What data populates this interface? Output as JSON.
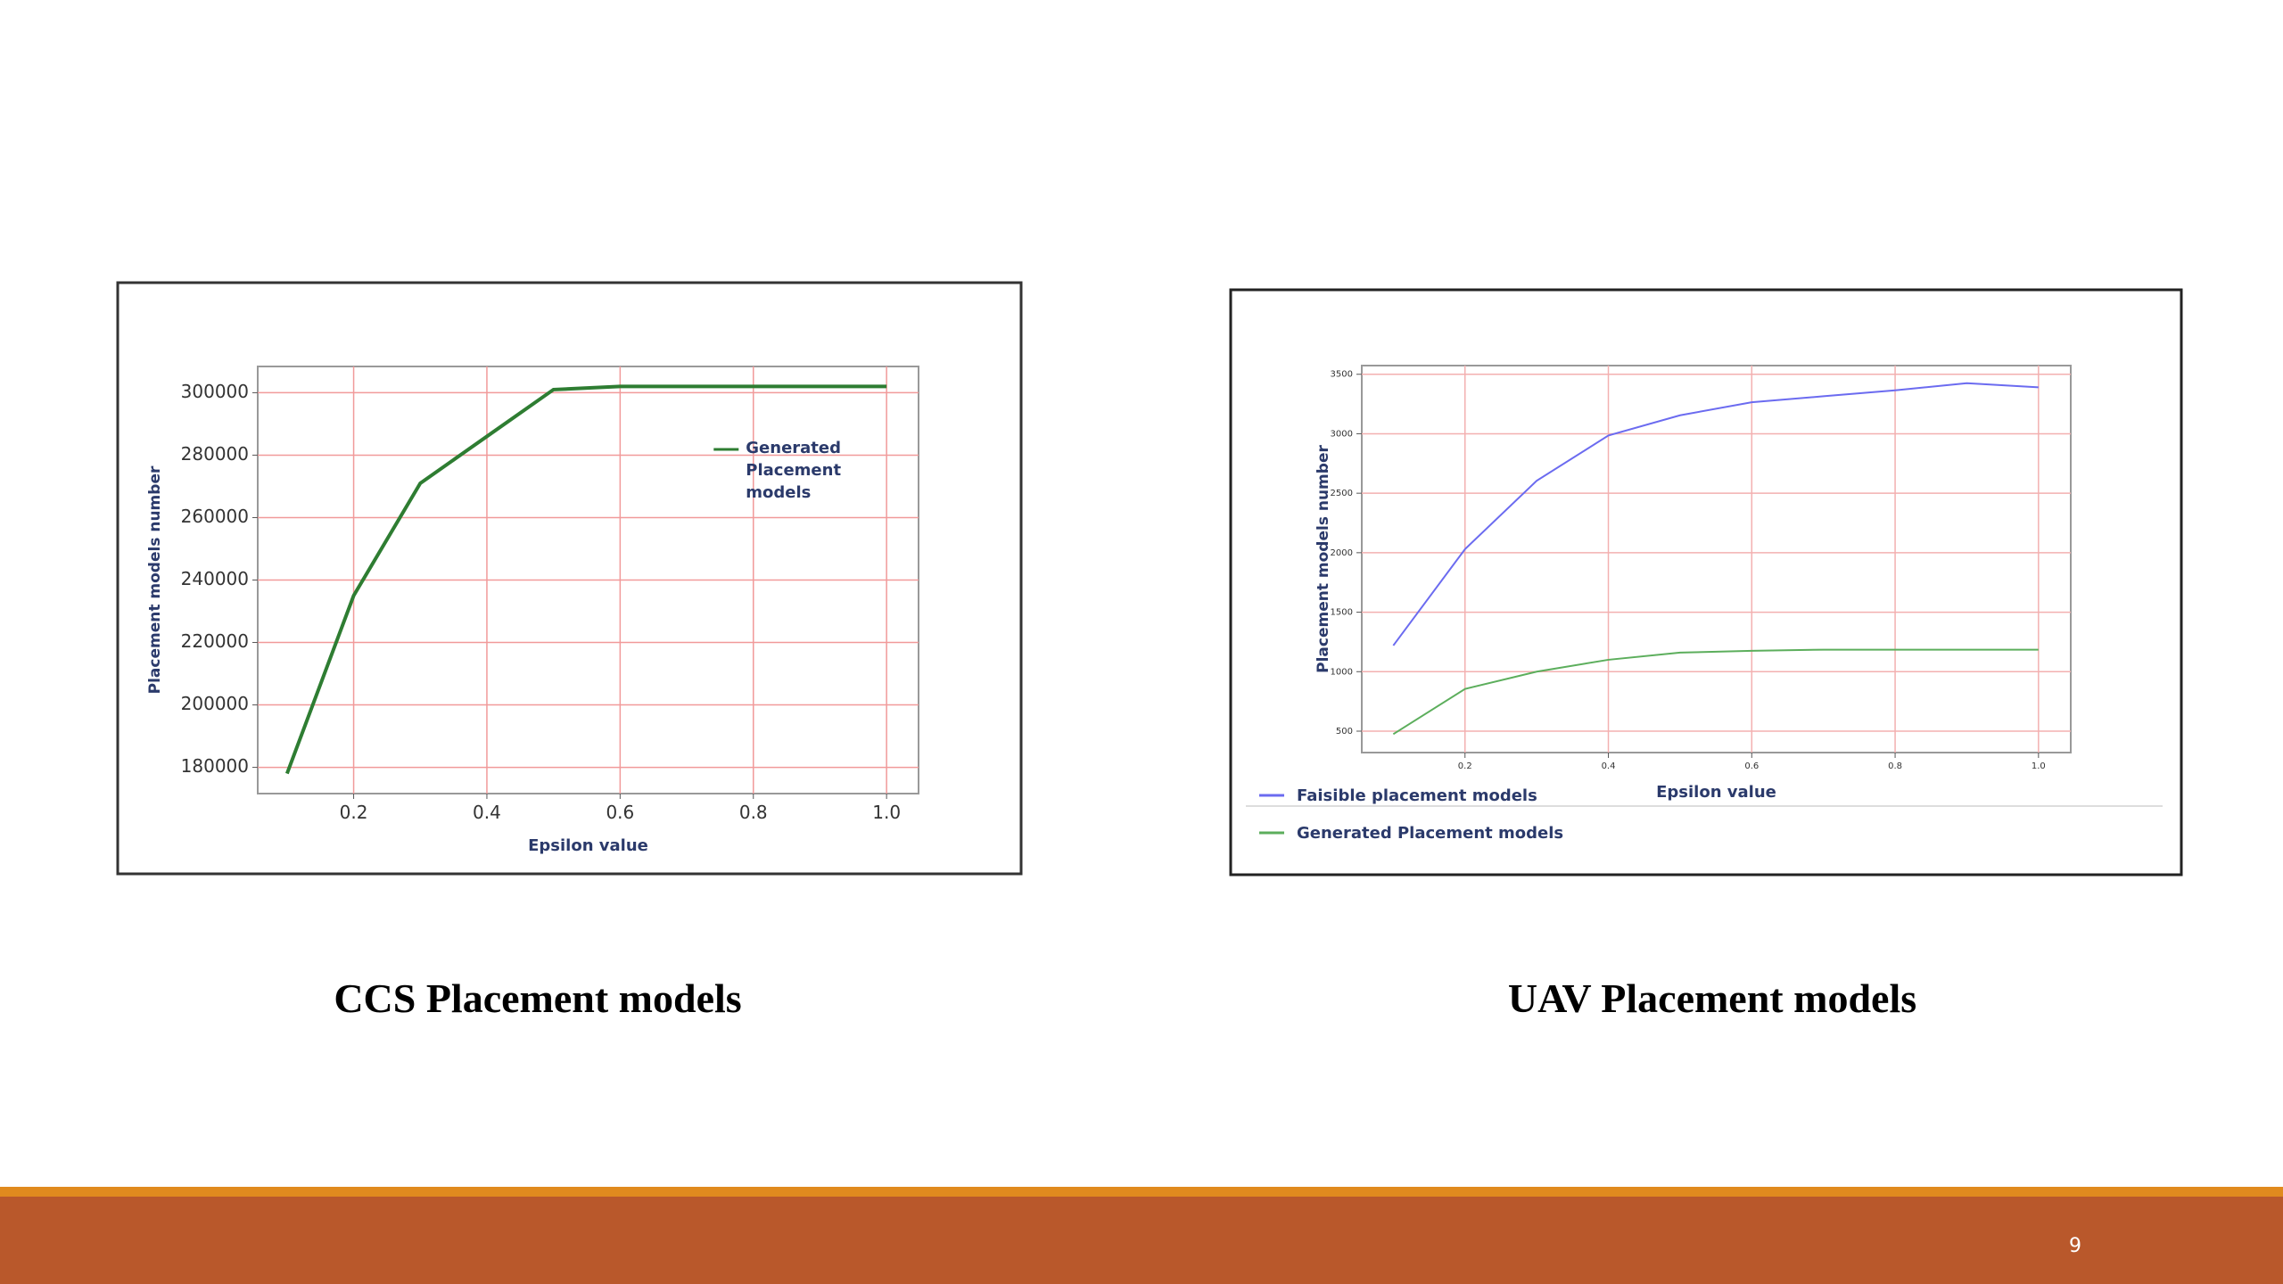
{
  "chart_data": [
    {
      "type": "line",
      "x": [
        0.1,
        0.2,
        0.3,
        0.4,
        0.5,
        0.6,
        0.7,
        0.8,
        0.9,
        1.0
      ],
      "series": [
        {
          "name": "Generated Placement models",
          "color": "#2e7d32",
          "values": [
            178000,
            235000,
            271000,
            286000,
            301000,
            302000,
            302000,
            302000,
            302000,
            302000
          ]
        }
      ],
      "xlabel": "Epsilon value",
      "ylabel": "Placement models  number",
      "xlim": [
        0.056,
        1.048
      ],
      "ylim": [
        171600,
        308400
      ],
      "xticks": [
        {
          "value": 0.2,
          "label": "0.2"
        },
        {
          "value": 0.4,
          "label": "0.4"
        },
        {
          "value": 0.6,
          "label": "0.6"
        },
        {
          "value": 0.8,
          "label": "0.8"
        },
        {
          "value": 1.0,
          "label": "1.0"
        }
      ],
      "yticks": [
        180000,
        200000,
        220000,
        240000,
        260000,
        280000,
        300000
      ],
      "grid": true,
      "grid_color": "#f19a9a",
      "legend": "upper right"
    },
    {
      "type": "line",
      "x": [
        0.1,
        0.2,
        0.3,
        0.4,
        0.5,
        0.6,
        0.7,
        0.8,
        0.9,
        1.0
      ],
      "series": [
        {
          "name": "Faisible placement models",
          "color": "#6b6bf0",
          "values": [
            1220,
            2030,
            2605,
            2985,
            3155,
            3265,
            3315,
            3365,
            3425,
            3390
          ]
        },
        {
          "name": "Generated Placement models",
          "color": "#5cae5c",
          "values": [
            475,
            855,
            1000,
            1100,
            1160,
            1175,
            1185,
            1185,
            1185,
            1185
          ]
        }
      ],
      "xlabel": "Epsilon value",
      "ylabel": "Placement models  number",
      "xlim": [
        0.056,
        1.045
      ],
      "ylim": [
        320,
        3573
      ],
      "xticks": [
        {
          "value": 0.2,
          "label": "0.2"
        },
        {
          "value": 0.4,
          "label": "0.4"
        },
        {
          "value": 0.6,
          "label": "0.6"
        },
        {
          "value": 0.8,
          "label": "0.8"
        },
        {
          "value": 1.0,
          "label": "1.0"
        }
      ],
      "yticks": [
        500,
        1000,
        1500,
        2000,
        2500,
        3000,
        3500
      ],
      "grid": true,
      "grid_color": "#f3b0b0",
      "legend": "below"
    }
  ],
  "captions": [
    "CCS Placement models",
    "UAV Placement models"
  ],
  "page_number": "9"
}
